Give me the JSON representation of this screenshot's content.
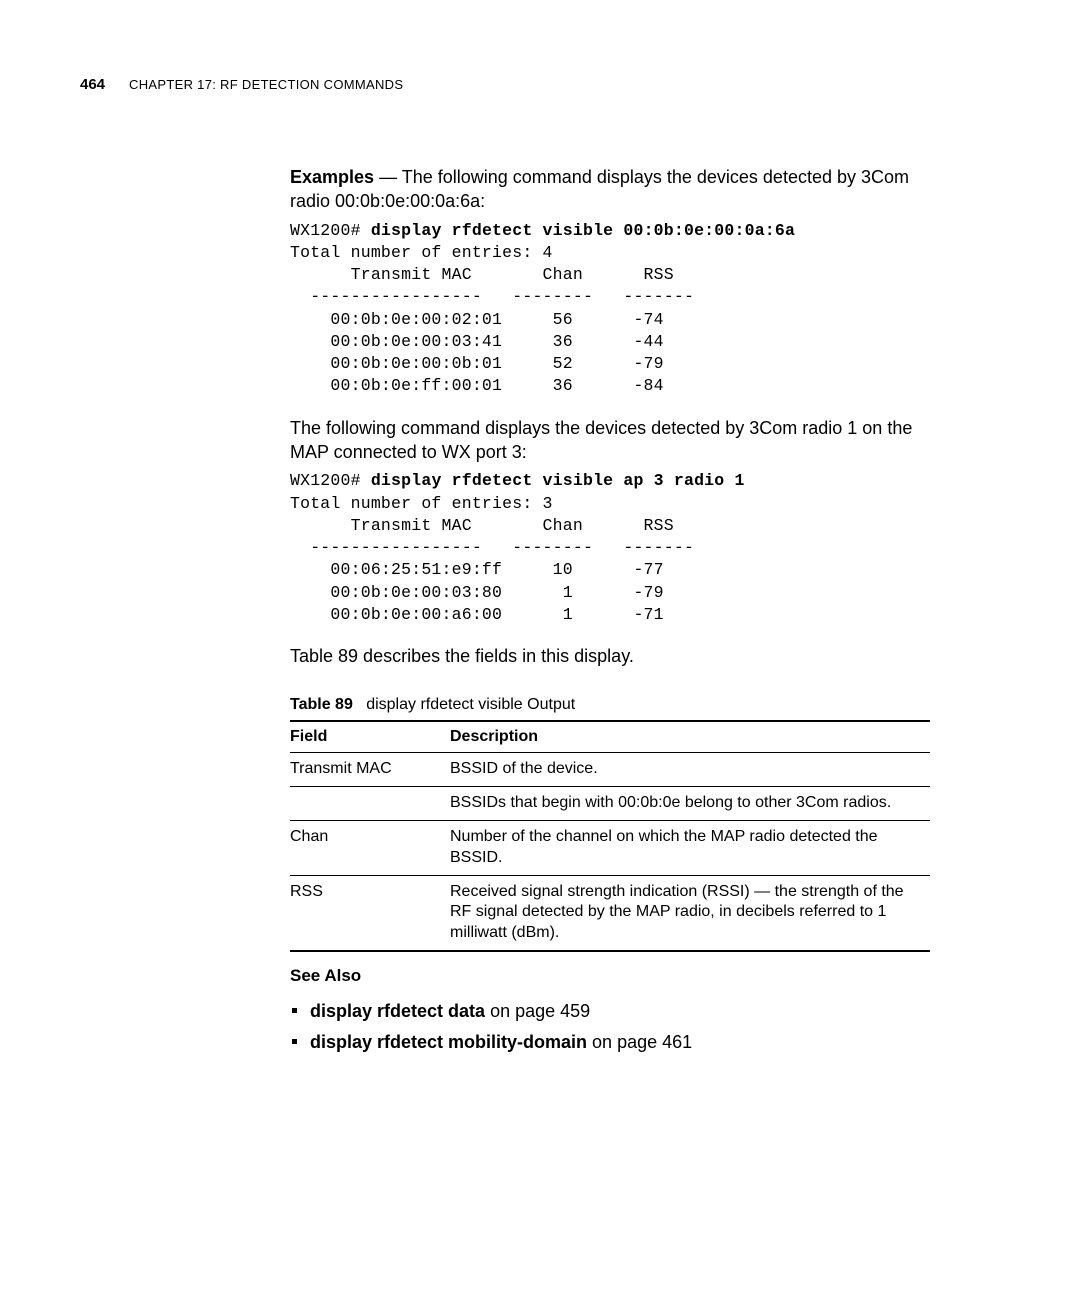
{
  "header": {
    "page_number": "464",
    "chapter_prefix": "C",
    "chapter_text": "HAPTER 17: RF D",
    "chapter_text2": "ETECTION ",
    "chapter_text3": "C",
    "chapter_text4": "OMMANDS"
  },
  "examples": {
    "label": "Examples",
    "intro": " — The following command displays the devices detected by 3Com radio 00:0b:0e:00:0a:6a:"
  },
  "code1": {
    "prompt": "WX1200# ",
    "command": "display rfdetect visible 00:0b:0e:00:0a:6a",
    "line2": "Total number of entries: 4",
    "line3": "      Transmit MAC       Chan      RSS",
    "line4": "  -----------------   --------   -------",
    "line5": "    00:0b:0e:00:02:01     56      -74",
    "line6": "    00:0b:0e:00:03:41     36      -44",
    "line7": "    00:0b:0e:00:0b:01     52      -79",
    "line8": "    00:0b:0e:ff:00:01     36      -84"
  },
  "para2": "The following command displays the devices detected by 3Com radio 1 on the MAP connected to WX port 3:",
  "code2": {
    "prompt": "WX1200# ",
    "command": "display rfdetect visible ap 3 radio 1",
    "line2": "Total number of entries: 3",
    "line3": "      Transmit MAC       Chan      RSS",
    "line4": "  -----------------   --------   -------",
    "line5": "    00:06:25:51:e9:ff     10      -77",
    "line6": "    00:0b:0e:00:03:80      1      -79",
    "line7": "    00:0b:0e:00:a6:00      1      -71"
  },
  "para3": "Table 89 describes the fields in this display.",
  "table": {
    "label": "Table 89",
    "caption": "display rfdetect visible Output",
    "head_field": "Field",
    "head_desc": "Description",
    "rows": [
      {
        "field": "Transmit MAC",
        "desc": "BSSID of the device."
      },
      {
        "field": "",
        "desc": "BSSIDs that begin with 00:0b:0e belong to other 3Com radios."
      },
      {
        "field": "Chan",
        "desc": "Number of the channel on which the MAP radio detected the BSSID."
      },
      {
        "field": "RSS",
        "desc": "Received signal strength indication (RSSI) — the strength of the RF signal detected by the MAP radio, in decibels referred to 1 milliwatt (dBm)."
      }
    ]
  },
  "see_also": {
    "label": "See Also",
    "items": [
      {
        "cmd": "display rfdetect data",
        "suffix": " on page 459"
      },
      {
        "cmd": "display rfdetect mobility-domain",
        "suffix": " on page 461"
      }
    ]
  }
}
